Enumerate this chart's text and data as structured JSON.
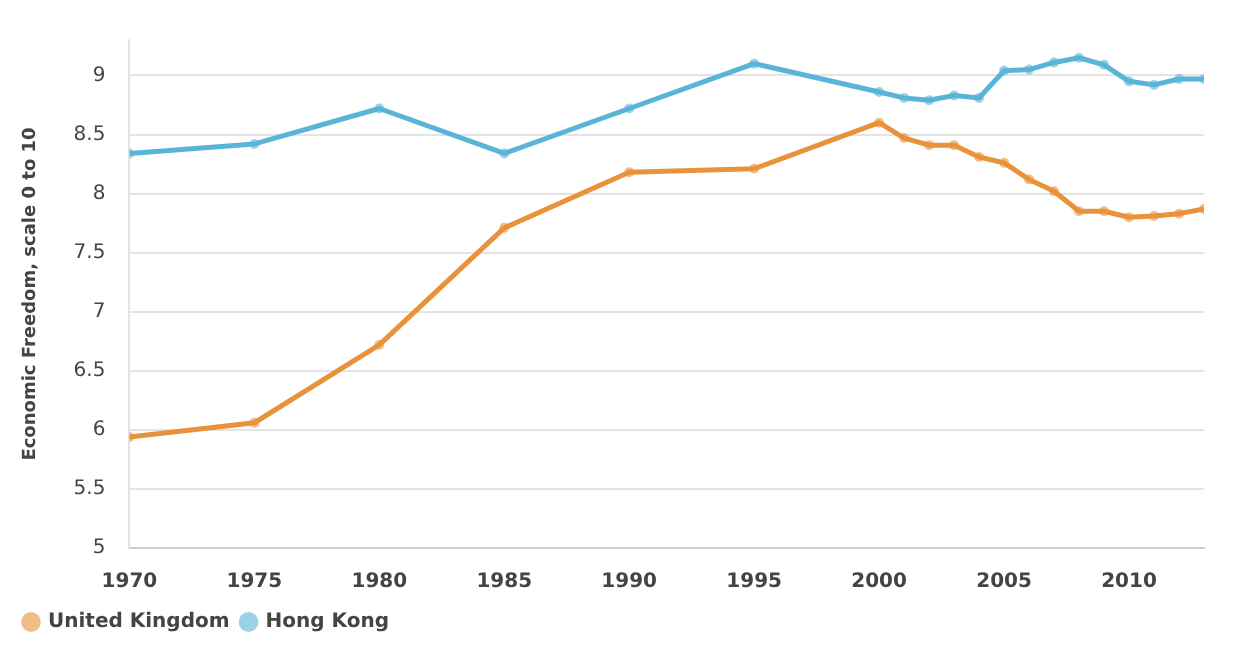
{
  "chart_data": {
    "type": "line",
    "ylabel": "Economic Freedom, scale 0 to 10",
    "x": [
      1970,
      1975,
      1980,
      1985,
      1990,
      1995,
      2000,
      2001,
      2002,
      2003,
      2004,
      2005,
      2006,
      2007,
      2008,
      2009,
      2010,
      2011,
      2012,
      2013
    ],
    "xlim": [
      1970,
      2013
    ],
    "xticks": [
      1970,
      1975,
      1980,
      1985,
      1990,
      1995,
      2000,
      2005,
      2010
    ],
    "ylim": [
      5,
      9.3
    ],
    "yticks": [
      5,
      5.5,
      6,
      6.5,
      7,
      7.5,
      8,
      8.5,
      9
    ],
    "series": [
      {
        "name": "United Kingdom",
        "color": "#e8923a",
        "values": [
          5.94,
          6.06,
          6.72,
          7.71,
          8.18,
          8.21,
          8.6,
          8.47,
          8.41,
          8.41,
          8.31,
          8.26,
          8.12,
          8.02,
          7.85,
          7.85,
          7.8,
          7.81,
          7.83,
          7.87
        ]
      },
      {
        "name": "Hong Kong",
        "color": "#5ab4d8",
        "values": [
          8.34,
          8.42,
          8.72,
          8.34,
          8.72,
          9.1,
          8.86,
          8.81,
          8.79,
          8.83,
          8.81,
          9.04,
          9.05,
          9.11,
          9.15,
          9.09,
          8.95,
          8.92,
          8.97,
          8.97
        ]
      }
    ],
    "grid": "y",
    "legend": "bottom left",
    "marker": "circle",
    "line_style": "solid"
  }
}
